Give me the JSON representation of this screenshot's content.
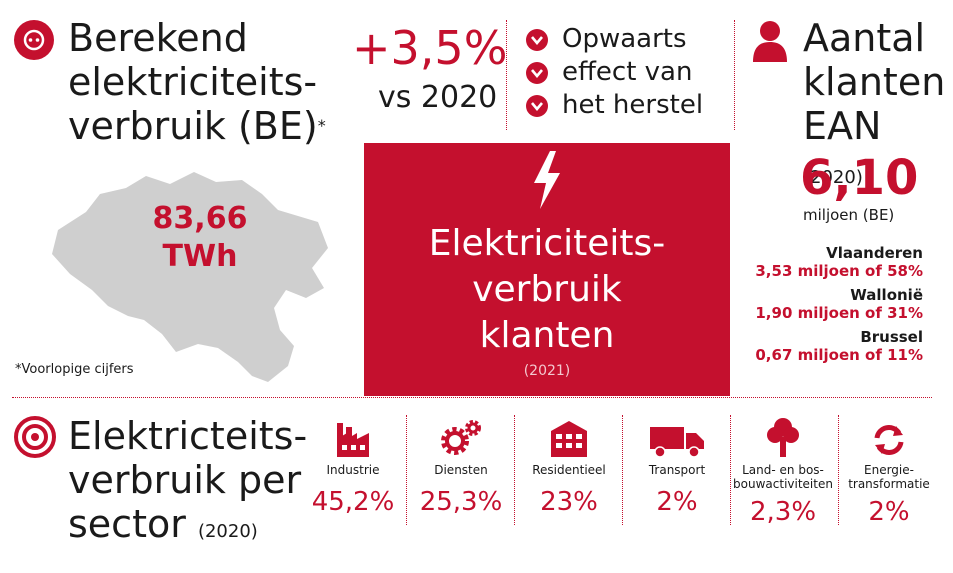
{
  "consumption": {
    "title_line1": "Berekend",
    "title_line2": "elektriciteits-",
    "title_line3": "verbruik (BE)",
    "asterisk": "*",
    "value": "83,66",
    "unit": "TWh",
    "footnote": "*Voorlopige cijfers"
  },
  "change": {
    "percent": "+3,5%",
    "comparison": "vs 2020",
    "reasons": [
      "Opwaarts",
      "effect van",
      "het herstel"
    ]
  },
  "center_box": {
    "line1": "Elektriciteits-",
    "line2": "verbruik",
    "line3": "klanten",
    "year": "(2021)"
  },
  "customers": {
    "title_line1": "Aantal",
    "title_line2": "klanten",
    "title_line3": "EAN",
    "year": "(2020)",
    "value": "6,10",
    "unit": "miljoen (BE)",
    "regions": [
      {
        "name": "Vlaanderen",
        "value": "3,53 miljoen of 58%"
      },
      {
        "name": "Wallonië",
        "value": "1,90 miljoen of 31%"
      },
      {
        "name": "Brussel",
        "value": "0,67 miljoen of 11%"
      }
    ]
  },
  "sectors": {
    "title_line1": "Elektricteits-",
    "title_line2": "verbruik per",
    "title_line3": "sector",
    "year": "(2020)",
    "items": [
      {
        "label": "Industrie",
        "value": "45,2%",
        "icon": "factory-icon"
      },
      {
        "label": "Diensten",
        "value": "25,3%",
        "icon": "gears-icon"
      },
      {
        "label": "Residentieel",
        "value": "23%",
        "icon": "building-icon"
      },
      {
        "label": "Transport",
        "value": "2%",
        "icon": "truck-icon"
      },
      {
        "label": "Land- en bos-",
        "label2": "bouwactiviteiten",
        "value": "2,3%",
        "icon": "tree-icon"
      },
      {
        "label": "Energie-",
        "label2": "transformatie",
        "value": "2%",
        "icon": "recycle-icon"
      }
    ]
  },
  "colors": {
    "accent": "#c4102e",
    "map": "#cfcfcf"
  }
}
